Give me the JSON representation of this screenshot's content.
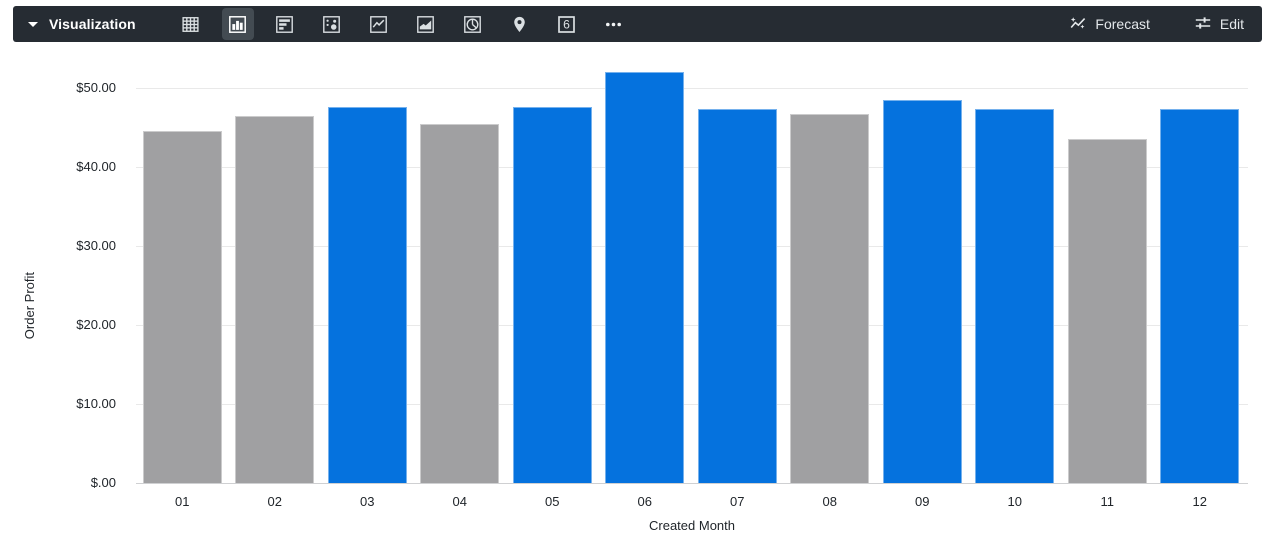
{
  "toolbar": {
    "title": "Visualization",
    "chart_types": [
      {
        "name": "table",
        "selected": false
      },
      {
        "name": "column-chart",
        "selected": true
      },
      {
        "name": "bar-chart",
        "selected": false
      },
      {
        "name": "scatter-plot",
        "selected": false
      },
      {
        "name": "line-chart",
        "selected": false
      },
      {
        "name": "area-chart",
        "selected": false
      },
      {
        "name": "pie-chart",
        "selected": false
      },
      {
        "name": "map",
        "selected": false
      },
      {
        "name": "single-value",
        "selected": false
      },
      {
        "name": "more-options",
        "selected": false
      }
    ],
    "single_value_glyph": "6",
    "forecast_label": "Forecast",
    "edit_label": "Edit"
  },
  "colors": {
    "toolbar_bg": "#262c33",
    "selected_bg": "#434b52",
    "icon": "#dbe0e3",
    "blue_bar": "#0572de",
    "gray_bar": "#a0a0a2",
    "gridline": "#e9e9e9",
    "axis_line": "#cfd0d2",
    "label": "#21262b"
  },
  "chart_data": {
    "type": "bar",
    "title": "",
    "xlabel": "Created Month",
    "ylabel": "Order Profit",
    "categories": [
      "01",
      "02",
      "03",
      "04",
      "05",
      "06",
      "07",
      "08",
      "09",
      "10",
      "11",
      "12"
    ],
    "values": [
      44.5,
      46.5,
      47.6,
      45.5,
      47.6,
      52.0,
      47.3,
      46.7,
      48.5,
      47.3,
      43.6,
      47.3
    ],
    "bar_color_keys": [
      "gray_bar",
      "gray_bar",
      "blue_bar",
      "gray_bar",
      "blue_bar",
      "blue_bar",
      "blue_bar",
      "gray_bar",
      "blue_bar",
      "blue_bar",
      "gray_bar",
      "blue_bar"
    ],
    "y_ticks": [
      {
        "label": "$50.00",
        "value": 50
      },
      {
        "label": "$40.00",
        "value": 40
      },
      {
        "label": "$30.00",
        "value": 30
      },
      {
        "label": "$20.00",
        "value": 20
      },
      {
        "label": "$10.00",
        "value": 10
      },
      {
        "label": "$.00",
        "value": 0
      }
    ],
    "ylim": [
      0,
      52.6
    ],
    "grid": true,
    "legend": false
  }
}
